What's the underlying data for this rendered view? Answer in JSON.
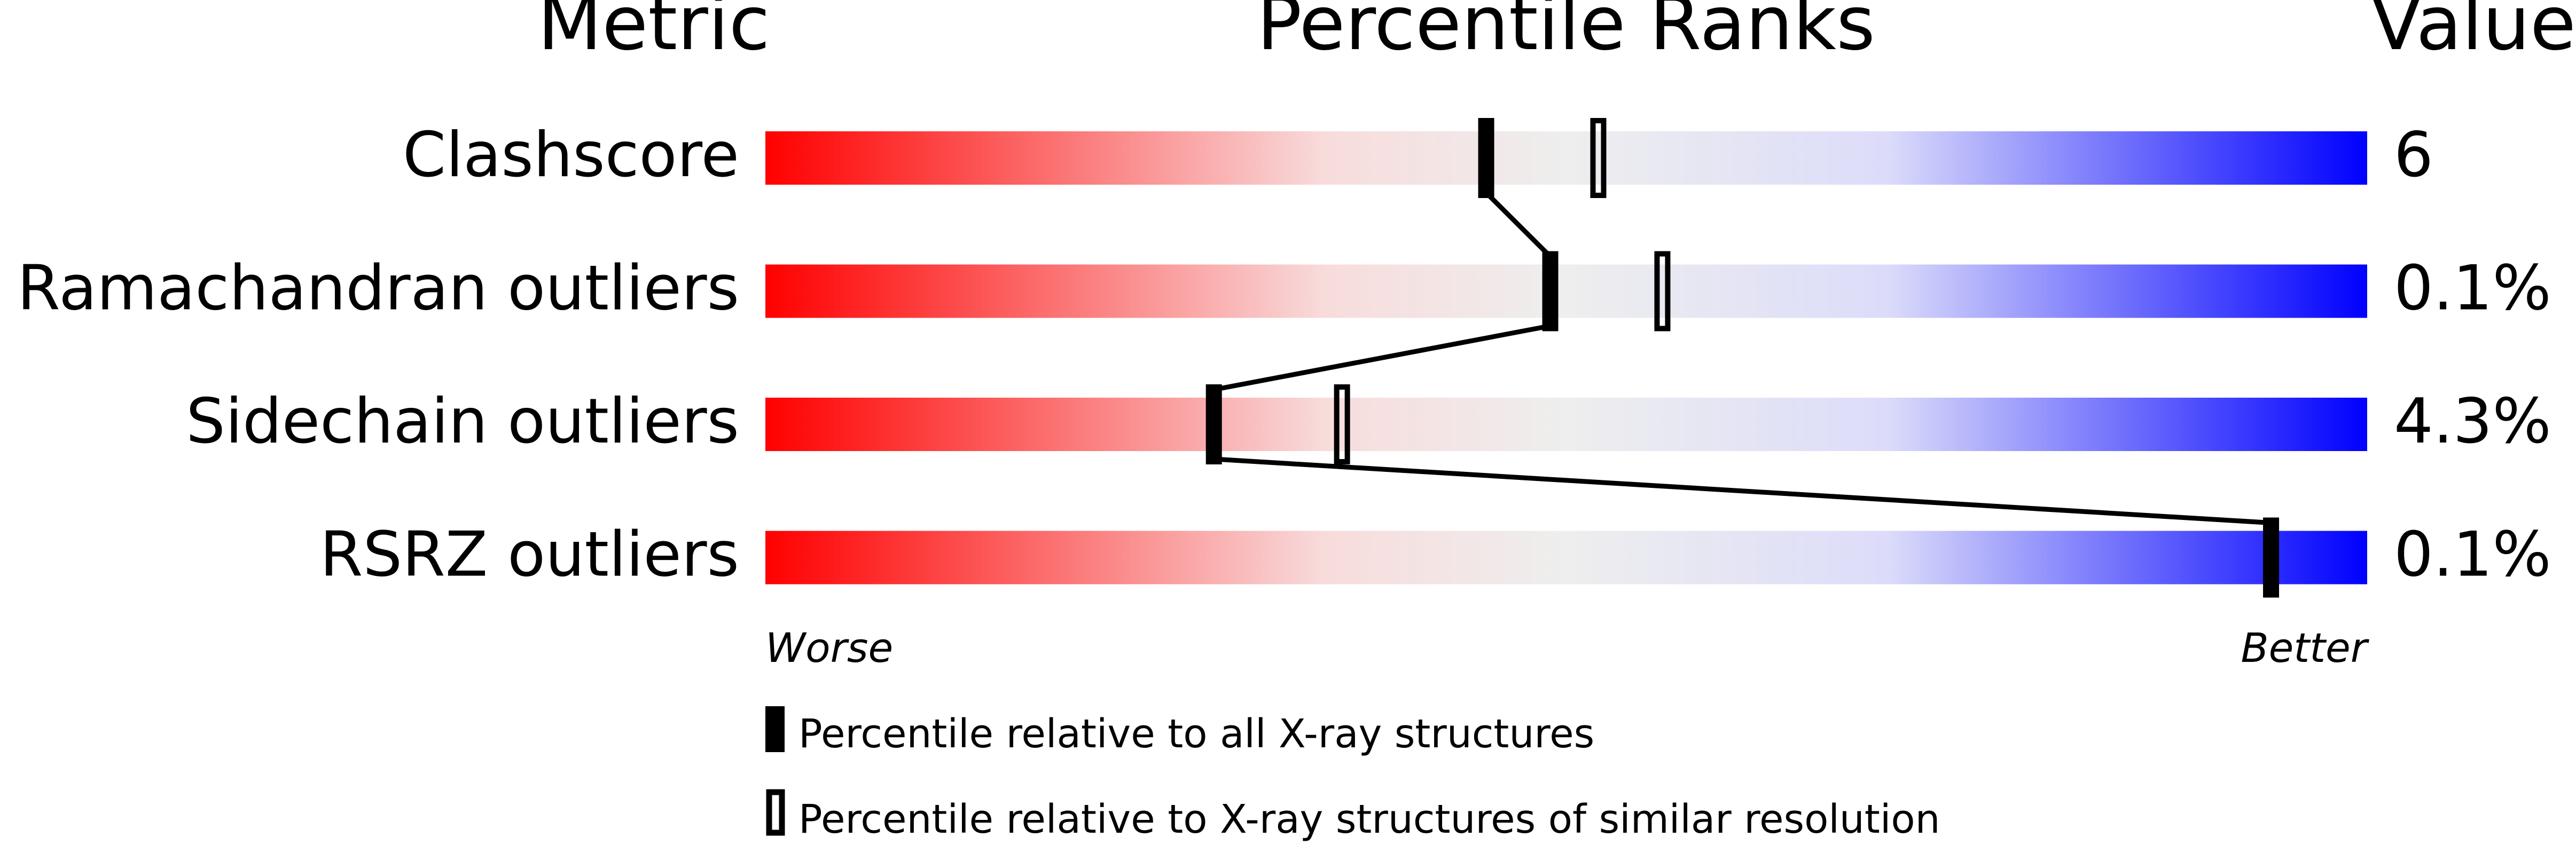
{
  "chart_data": {
    "type": "percentile-slider",
    "headers": {
      "metric": "Metric",
      "ranks": "Percentile Ranks",
      "value": "Value"
    },
    "xlim": [
      0,
      100
    ],
    "axis_labels": {
      "left": "Worse",
      "right": "Better"
    },
    "rows": [
      {
        "metric": "Clashscore",
        "value": "6",
        "percentile_all": 45,
        "percentile_similar": 52
      },
      {
        "metric": "Ramachandran outliers",
        "value": "0.1%",
        "percentile_all": 49,
        "percentile_similar": 56
      },
      {
        "metric": "Sidechain outliers",
        "value": "4.3%",
        "percentile_all": 28,
        "percentile_similar": 36
      },
      {
        "metric": "RSRZ outliers",
        "value": "0.1%",
        "percentile_all": 94,
        "percentile_similar": null
      }
    ],
    "legend": [
      {
        "marker": "filled",
        "label": "Percentile relative to all X-ray structures"
      },
      {
        "marker": "outline",
        "label": "Percentile relative to X-ray structures of similar resolution"
      }
    ],
    "gradient_colors": [
      "#ff0000",
      "#f8dcdc",
      "#eeeeee",
      "#dcdcfa",
      "#0000ff"
    ]
  }
}
